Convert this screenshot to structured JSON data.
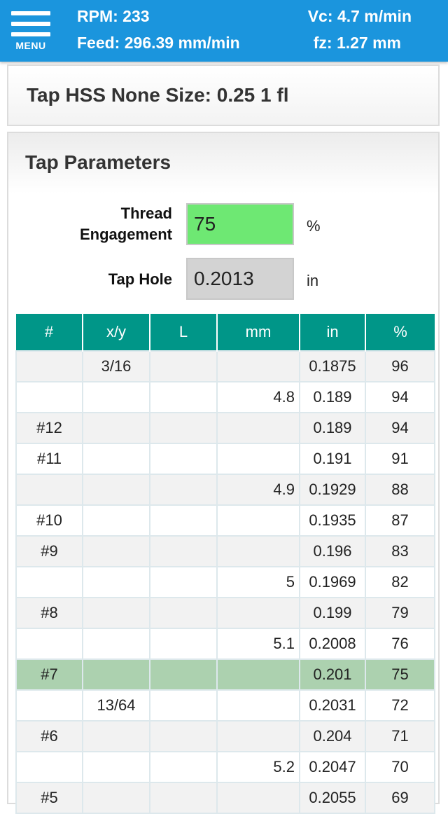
{
  "header": {
    "menu_label": "MENU",
    "rpm": "RPM: 233",
    "feed": "Feed: 296.39 mm/min",
    "vc": "Vc: 4.7 m/min",
    "fz": "fz: 1.27 mm",
    "background": "#1b95dd"
  },
  "title": "Tap HSS None Size: 0.25 1 fl",
  "params": {
    "heading": "Tap Parameters",
    "thread_label_1": "Thread",
    "thread_label_2": "Engagement",
    "thread_value": "75",
    "thread_unit": "%",
    "thread_color": "#6ee873",
    "hole_label": "Tap Hole",
    "hole_value": "0.2013",
    "hole_unit": "in",
    "hole_color": "#d3d3d3"
  },
  "table": {
    "headers": [
      "#",
      "x/y",
      "L",
      "mm",
      "in",
      "%"
    ],
    "header_color": "#009688",
    "highlight_color": "#acd1af",
    "rows": [
      [
        "",
        "3/16",
        "",
        "",
        "0.1875",
        "96"
      ],
      [
        "",
        "",
        "",
        "4.8",
        "0.189",
        "94"
      ],
      [
        "#12",
        "",
        "",
        "",
        "0.189",
        "94"
      ],
      [
        "#11",
        "",
        "",
        "",
        "0.191",
        "91"
      ],
      [
        "",
        "",
        "",
        "4.9",
        "0.1929",
        "88"
      ],
      [
        "#10",
        "",
        "",
        "",
        "0.1935",
        "87"
      ],
      [
        "#9",
        "",
        "",
        "",
        "0.196",
        "83"
      ],
      [
        "",
        "",
        "",
        "5",
        "0.1969",
        "82"
      ],
      [
        "#8",
        "",
        "",
        "",
        "0.199",
        "79"
      ],
      [
        "",
        "",
        "",
        "5.1",
        "0.2008",
        "76"
      ],
      [
        "#7",
        "",
        "",
        "",
        "0.201",
        "75"
      ],
      [
        "",
        "13/64",
        "",
        "",
        "0.2031",
        "72"
      ],
      [
        "#6",
        "",
        "",
        "",
        "0.204",
        "71"
      ],
      [
        "",
        "",
        "",
        "5.2",
        "0.2047",
        "70"
      ],
      [
        "#5",
        "",
        "",
        "",
        "0.2055",
        "69"
      ]
    ],
    "highlight_row": 10
  }
}
